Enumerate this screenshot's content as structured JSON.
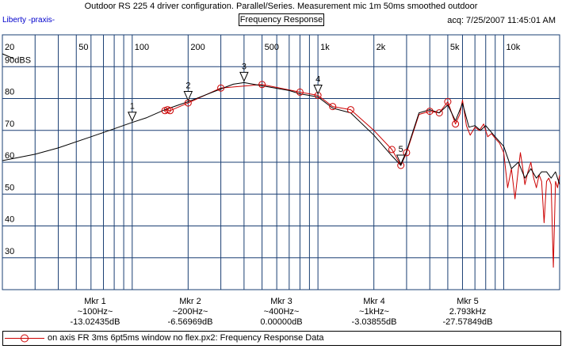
{
  "window": {
    "title": "Outdoor RS 225 4 driver configuration. Parallel/Series. Measurement mic 1m 50ms smoothed outdoor",
    "app_label": "Liberty -praxis-",
    "plot_name": "Frequency Response",
    "acq": "acq: 7/25/2007 11:45:01 AM"
  },
  "colors": {
    "grid": "#1a3f73",
    "trace_measured": "#cc0000",
    "trace_smoothed": "#000000",
    "background": "#ffffff"
  },
  "chart_data": {
    "type": "line",
    "title": "Frequency Response",
    "x_scale": "log",
    "xlim": [
      20,
      20000
    ],
    "ylim": [
      20,
      100
    ],
    "x_ticks": [
      {
        "value": 20,
        "label": "20"
      },
      {
        "value": 50,
        "label": "50"
      },
      {
        "value": 100,
        "label": "100"
      },
      {
        "value": 200,
        "label": "200"
      },
      {
        "value": 500,
        "label": "500"
      },
      {
        "value": 1000,
        "label": "1k"
      },
      {
        "value": 2000,
        "label": "2k"
      },
      {
        "value": 5000,
        "label": "5k"
      },
      {
        "value": 10000,
        "label": "10k"
      }
    ],
    "y_ticks": [
      {
        "value": 90,
        "label": "90dBS"
      },
      {
        "value": 80,
        "label": "80"
      },
      {
        "value": 70,
        "label": "70"
      },
      {
        "value": 60,
        "label": "60"
      },
      {
        "value": 50,
        "label": "50"
      },
      {
        "value": 40,
        "label": "40"
      },
      {
        "value": 30,
        "label": "30"
      }
    ],
    "grid": true,
    "series": [
      {
        "name": "on axis FR 3ms 6pt5ms window no flex.px2:  Frequency Response Data",
        "color": "#cc0000",
        "marker": "circle",
        "x": [
          150,
          155,
          160,
          200,
          300,
          500,
          800,
          1000,
          1200,
          1500,
          2000,
          2500,
          2793,
          3000,
          3500,
          4000,
          4500,
          5000,
          5500,
          5800,
          6000,
          6300,
          6600,
          7000,
          7400,
          7800,
          8200,
          8600,
          9000,
          9500,
          10000,
          10500,
          11000,
          11500,
          12000,
          12300,
          12600,
          13000,
          13500,
          14000,
          14500,
          15000,
          15500,
          16000,
          16500,
          17000,
          17500,
          18000,
          18500,
          19000,
          19500,
          20000
        ],
        "y": [
          76.2,
          76.5,
          76.2,
          78.6,
          83.3,
          84.4,
          82.0,
          81.0,
          77.5,
          76.5,
          70.0,
          64.0,
          59.0,
          63.0,
          75.0,
          76.0,
          75.5,
          79.0,
          72.0,
          75.0,
          79.5,
          71.5,
          68.5,
          71.0,
          70.0,
          72.0,
          68.0,
          69.0,
          67.5,
          66.0,
          63.0,
          52.0,
          58.0,
          48.5,
          58.0,
          63.0,
          59.0,
          53.0,
          57.0,
          60.0,
          55.0,
          52.0,
          56.0,
          54.0,
          41.0,
          54.0,
          55.0,
          53.0,
          27.0,
          54.0,
          52.0,
          56.0
        ]
      },
      {
        "name": "",
        "color": "#000000",
        "x": [
          20,
          30,
          40,
          60,
          80,
          100,
          120,
          150,
          200,
          300,
          350,
          400,
          500,
          700,
          800,
          1000,
          1200,
          1500,
          2000,
          2500,
          2793,
          3000,
          3500,
          4000,
          4500,
          5000,
          5500,
          6000,
          6500,
          7000,
          7500,
          8000,
          9000,
          10000,
          11000,
          12000,
          13000,
          14000,
          15000,
          16000,
          17000,
          18000,
          19000,
          20000
        ],
        "y": [
          60.5,
          62.5,
          64.5,
          68.0,
          70.5,
          72.5,
          74.0,
          76.5,
          79.0,
          83.0,
          84.5,
          85.0,
          84.0,
          82.5,
          81.5,
          80.5,
          77.0,
          75.5,
          68.5,
          62.0,
          59.0,
          63.5,
          75.5,
          76.5,
          75.5,
          78.0,
          73.0,
          78.5,
          71.0,
          71.5,
          70.0,
          71.5,
          68.0,
          65.0,
          58.0,
          60.0,
          55.0,
          58.0,
          55.0,
          57.0,
          57.0,
          55.0,
          57.0,
          53.0
        ]
      }
    ],
    "markers": [
      {
        "label": "1",
        "x": 100,
        "y": 72.5
      },
      {
        "label": "2",
        "x": 200,
        "y": 79.0
      },
      {
        "label": "3",
        "x": 400,
        "y": 85.0
      },
      {
        "label": "4",
        "x": 1000,
        "y": 81.0
      },
      {
        "label": "5",
        "x": 2793,
        "y": 59.0
      }
    ]
  },
  "markers_readout": [
    {
      "name": "Mkr 1",
      "freq": "~100Hz~",
      "value": "-13.02435dB"
    },
    {
      "name": "Mkr 2",
      "freq": "~200Hz~",
      "value": "-6.56969dB"
    },
    {
      "name": "Mkr 3",
      "freq": "~400Hz~",
      "value": "0.00000dB"
    },
    {
      "name": "Mkr 4",
      "freq": "~1kHz~",
      "value": "-3.03855dB"
    },
    {
      "name": "Mkr 5",
      "freq": "2.793kHz",
      "value": "-27.57849dB"
    }
  ],
  "legend": {
    "label": "on axis FR 3ms 6pt5ms window no flex.px2:  Frequency Response Data"
  }
}
